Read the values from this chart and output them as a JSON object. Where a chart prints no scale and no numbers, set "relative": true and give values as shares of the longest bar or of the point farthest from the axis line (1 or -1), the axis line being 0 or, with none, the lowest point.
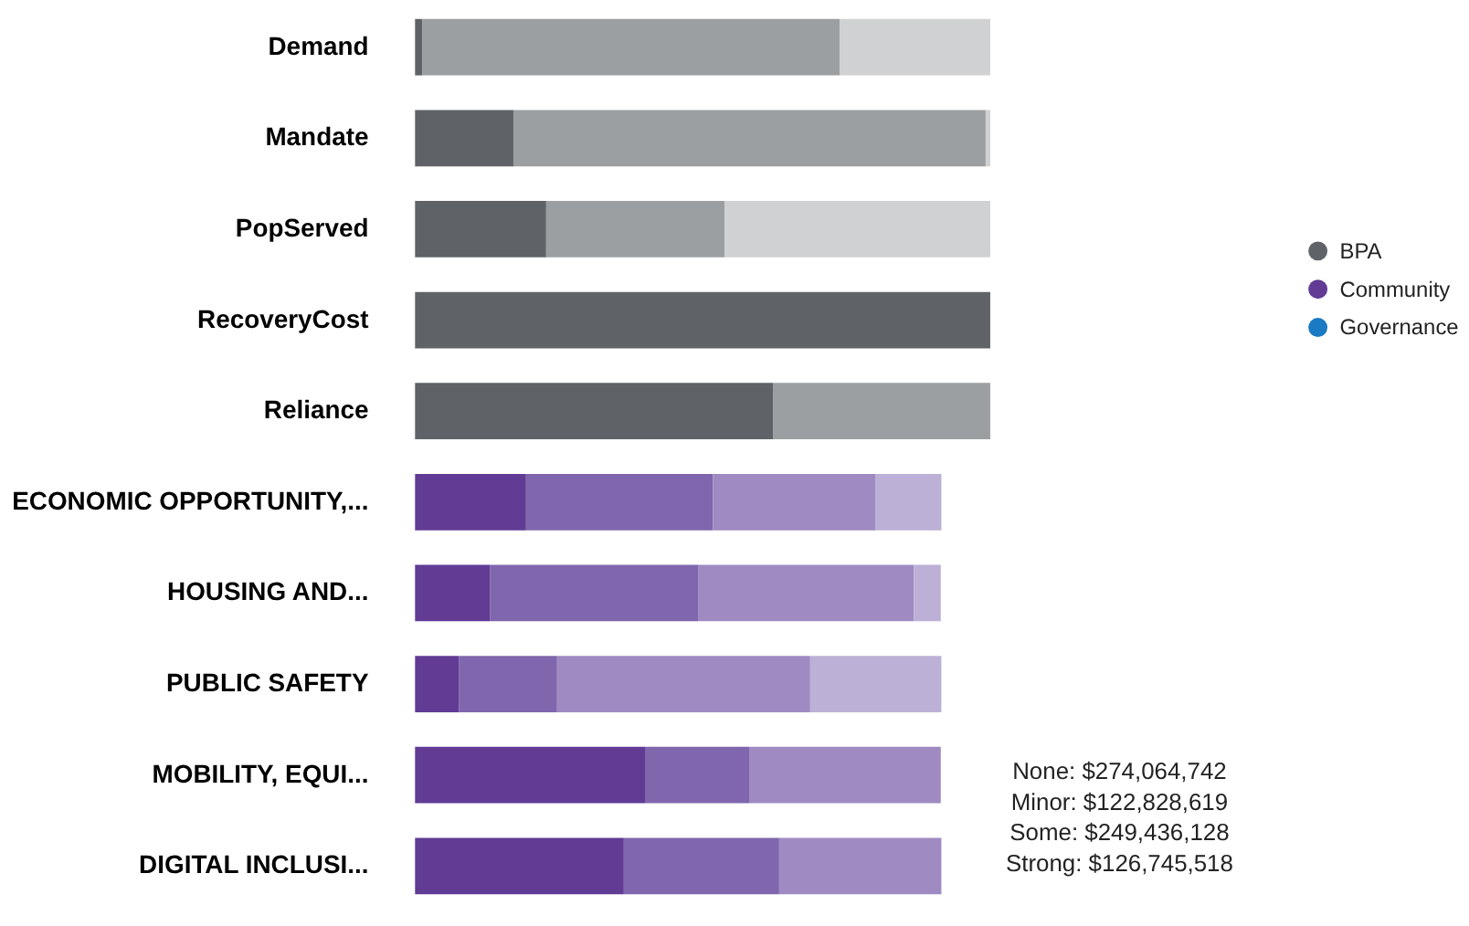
{
  "chart_data": {
    "type": "bar",
    "orientation": "horizontal",
    "stacked": true,
    "relative": true,
    "legend": "right",
    "categories": [
      "Demand",
      "Mandate",
      "PopServed",
      "RecoveryCost",
      "Reliance",
      "ECONOMIC OPPORTUNITY,...",
      "HOUSING AND...",
      "PUBLIC SAFETY",
      "MOBILITY, EQUI...",
      "DIGITAL INCLUSI..."
    ],
    "series": [
      {
        "name": "BPA",
        "color": "#5f6368",
        "values": [
          0.013,
          0.171,
          0.228,
          1,
          0.623,
          null,
          null,
          null,
          null,
          null
        ]
      },
      {
        "color": "#9c9fa2",
        "values": [
          0.725,
          0.821,
          0.31,
          null,
          0.377,
          null,
          null,
          null,
          null,
          null
        ]
      },
      {
        "color": "#d0d1d3",
        "values": [
          0.262,
          0.008,
          0.462,
          null,
          null,
          null,
          null,
          null,
          null,
          null
        ]
      },
      {
        "name": "Community",
        "color": "#613b94",
        "values": [
          null,
          null,
          null,
          null,
          null,
          0.193,
          0.13,
          0.076,
          0.401,
          0.363
        ]
      },
      {
        "color": "#7f66ad",
        "values": [
          null,
          null,
          null,
          null,
          null,
          0.325,
          0.363,
          0.171,
          0.181,
          0.27
        ]
      },
      {
        "color": "#9f8ac2",
        "values": [
          null,
          null,
          null,
          null,
          null,
          0.283,
          0.374,
          0.44,
          0.332,
          0.282
        ]
      },
      {
        "color": "#bdb0d6",
        "values": [
          null,
          null,
          null,
          null,
          null,
          0.114,
          0.047,
          0.228,
          null,
          null
        ]
      },
      {
        "name": "Governance",
        "color": "#1a7ac4",
        "values": [
          null,
          null,
          null,
          null,
          null,
          null,
          null,
          null,
          null,
          null
        ]
      }
    ],
    "annotations": [
      "None: $274,064,742",
      "Minor: $122,828,619",
      "Some: $249,436,128",
      "Strong: $126,745,518"
    ]
  }
}
